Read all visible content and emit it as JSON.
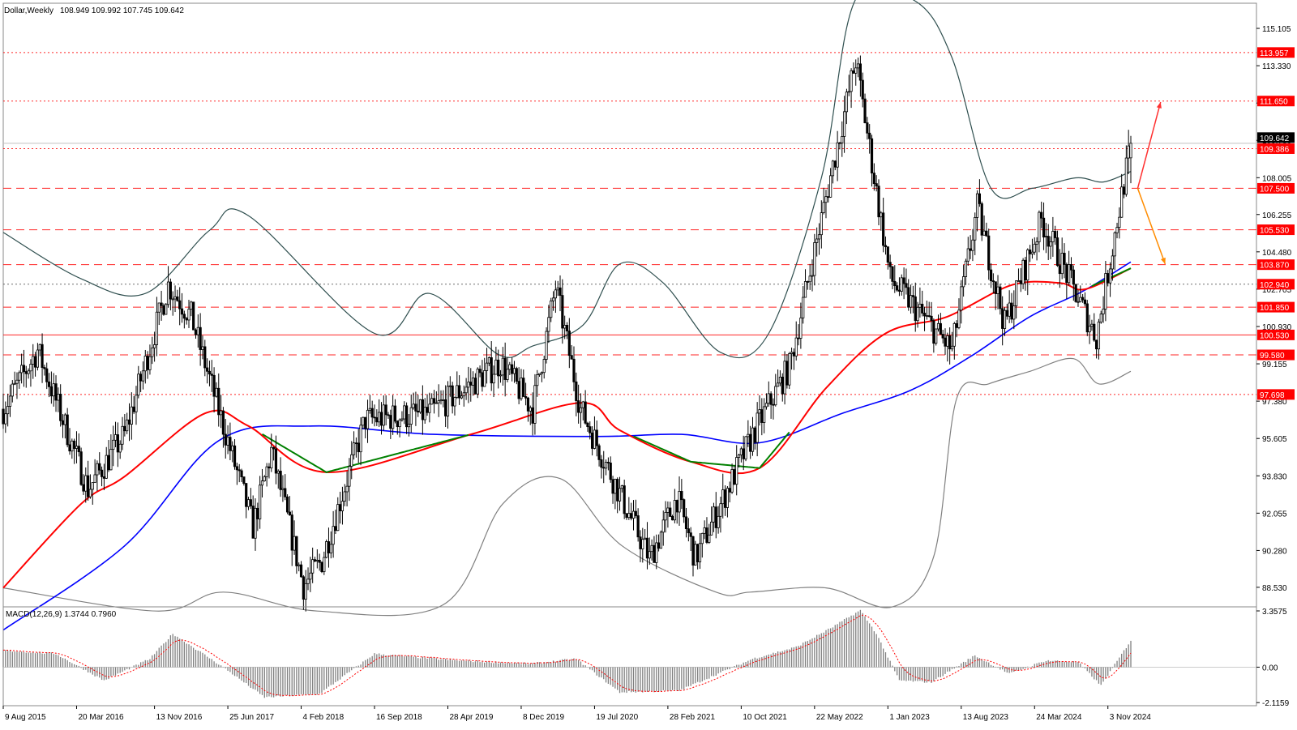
{
  "chart_title": {
    "symbol": "Dollar,Weekly",
    "ohlc": "108.949 109.992 107.745 109.642"
  },
  "macd_label": "MACD(12,26,9) 1.3744 0.7960",
  "colors": {
    "background": "#ffffff",
    "candle": "#000000",
    "ma_red": "#ff0000",
    "ma_blue": "#0000ff",
    "ma_green": "#008000",
    "bollinger_upper": "#2f4f4f",
    "bollinger_lower": "#808080",
    "level_line": "#ff0000",
    "badge_fill": "#ff0000",
    "arrow_up": "#ff3030",
    "arrow_down": "#ff8c00",
    "macd_bar": "#808080",
    "macd_signal": "#ff0000"
  },
  "price_axis": {
    "min": 87.6,
    "max": 116.3,
    "ticks": [
      "115.105",
      "113.330",
      "111.555",
      "109.780",
      "108.005",
      "106.255",
      "104.480",
      "102.705",
      "100.930",
      "99.155",
      "97.380",
      "95.605",
      "93.830",
      "92.055",
      "90.280",
      "88.530"
    ]
  },
  "macd_axis": {
    "min": -2.3,
    "max": 3.6,
    "ticks": [
      "3.3575",
      "0.00",
      "-2.1159"
    ]
  },
  "time_axis": {
    "start": "2015-08-09",
    "end": "2025-01-12",
    "labels": [
      "9 Aug 2015",
      "20 Mar 2016",
      "13 Nov 2016",
      "25 Jun 2017",
      "4 Feb 2018",
      "16 Sep 2018",
      "28 Apr 2019",
      "8 Dec 2019",
      "19 Jul 2020",
      "28 Feb 2021",
      "10 Oct 2021",
      "22 May 2022",
      "1 Jan 2023",
      "13 Aug 2023",
      "24 Mar 2024",
      "3 Nov 2024"
    ]
  },
  "levels": [
    {
      "value": "113.957",
      "price": 113.957,
      "style": "dotted"
    },
    {
      "value": "111.650",
      "price": 111.65,
      "style": "dotted"
    },
    {
      "value": "109.386",
      "price": 109.386,
      "style": "dotted"
    },
    {
      "value": "107.500",
      "price": 107.5,
      "style": "dashed"
    },
    {
      "value": "105.530",
      "price": 105.53,
      "style": "dashed"
    },
    {
      "value": "103.870",
      "price": 103.87,
      "style": "dashed"
    },
    {
      "value": "102.940",
      "price": 102.94,
      "style": "dotted_dark"
    },
    {
      "value": "101.850",
      "price": 101.85,
      "style": "dashed"
    },
    {
      "value": "100.530",
      "price": 100.53,
      "style": "solid"
    },
    {
      "value": "99.580",
      "price": 99.58,
      "style": "dashed"
    },
    {
      "value": "97.698",
      "price": 97.698,
      "style": "dotted"
    }
  ],
  "current_price": {
    "value": "109.642",
    "price": 109.642
  },
  "chart_data": {
    "type": "candlestick",
    "title": "Dollar,Weekly",
    "timeframe": "Weekly",
    "last_bar": {
      "open": 108.949,
      "high": 109.992,
      "low": 107.745,
      "close": 109.642
    },
    "price_path_anchors": [
      {
        "date": "2015-08-09",
        "price": 97.0
      },
      {
        "date": "2015-11-22",
        "price": 99.8
      },
      {
        "date": "2016-04-24",
        "price": 93.2
      },
      {
        "date": "2016-08-14",
        "price": 95.8
      },
      {
        "date": "2016-12-25",
        "price": 102.9
      },
      {
        "date": "2017-03-05",
        "price": 101.4
      },
      {
        "date": "2017-09-10",
        "price": 91.4
      },
      {
        "date": "2017-11-05",
        "price": 95.0
      },
      {
        "date": "2018-02-11",
        "price": 88.6
      },
      {
        "date": "2018-04-08",
        "price": 89.8
      },
      {
        "date": "2018-08-19",
        "price": 96.5
      },
      {
        "date": "2019-03-03",
        "price": 96.8
      },
      {
        "date": "2019-10-06",
        "price": 99.2
      },
      {
        "date": "2020-01-12",
        "price": 97.0
      },
      {
        "date": "2020-03-22",
        "price": 102.8
      },
      {
        "date": "2020-06-07",
        "price": 97.0
      },
      {
        "date": "2021-01-03",
        "price": 89.9
      },
      {
        "date": "2021-03-28",
        "price": 92.8
      },
      {
        "date": "2021-05-23",
        "price": 89.9
      },
      {
        "date": "2021-11-21",
        "price": 96.0
      },
      {
        "date": "2022-03-06",
        "price": 99.0
      },
      {
        "date": "2022-09-25",
        "price": 113.6
      },
      {
        "date": "2023-01-08",
        "price": 103.2
      },
      {
        "date": "2023-07-16",
        "price": 99.8
      },
      {
        "date": "2023-10-01",
        "price": 106.6
      },
      {
        "date": "2023-12-24",
        "price": 101.0
      },
      {
        "date": "2024-04-14",
        "price": 106.0
      },
      {
        "date": "2024-09-29",
        "price": 100.4
      },
      {
        "date": "2025-01-12",
        "price": 109.6
      }
    ],
    "moving_averages": [
      {
        "name": "MA fast",
        "color": "red",
        "points": [
          {
            "date": "2015-08-09",
            "price": 88.5
          },
          {
            "date": "2016-04-03",
            "price": 92.5
          },
          {
            "date": "2016-08-14",
            "price": 93.8
          },
          {
            "date": "2017-04-16",
            "price": 96.8
          },
          {
            "date": "2017-08-27",
            "price": 96.2
          },
          {
            "date": "2018-04-22",
            "price": 94.0
          },
          {
            "date": "2019-07-07",
            "price": 95.8
          },
          {
            "date": "2020-06-07",
            "price": 97.3
          },
          {
            "date": "2020-10-04",
            "price": 96.0
          },
          {
            "date": "2021-05-09",
            "price": 94.5
          },
          {
            "date": "2021-12-05",
            "price": 94.2
          },
          {
            "date": "2022-06-26",
            "price": 98.0
          },
          {
            "date": "2022-12-25",
            "price": 100.6
          },
          {
            "date": "2023-07-02",
            "price": 101.4
          },
          {
            "date": "2024-01-14",
            "price": 102.9
          },
          {
            "date": "2024-06-09",
            "price": 103.0
          },
          {
            "date": "2024-08-25",
            "price": 102.7
          },
          {
            "date": "2025-01-12",
            "price": 103.7
          }
        ]
      },
      {
        "name": "MA slow",
        "color": "blue",
        "points": [
          {
            "date": "2015-08-09",
            "price": 86.5
          },
          {
            "date": "2016-08-14",
            "price": 90.5
          },
          {
            "date": "2017-05-28",
            "price": 95.5
          },
          {
            "date": "2018-03-11",
            "price": 96.2
          },
          {
            "date": "2019-03-17",
            "price": 95.8
          },
          {
            "date": "2020-08-02",
            "price": 95.7
          },
          {
            "date": "2021-04-11",
            "price": 95.8
          },
          {
            "date": "2021-12-05",
            "price": 95.4
          },
          {
            "date": "2022-08-14",
            "price": 96.8
          },
          {
            "date": "2023-03-12",
            "price": 97.9
          },
          {
            "date": "2023-09-10",
            "price": 99.5
          },
          {
            "date": "2024-03-10",
            "price": 101.4
          },
          {
            "date": "2024-08-18",
            "price": 102.6
          },
          {
            "date": "2025-01-12",
            "price": 104.0
          }
        ]
      }
    ],
    "bollinger_bands": {
      "upper": [
        {
          "date": "2015-08-09",
          "price": 105.4
        },
        {
          "date": "2016-04-03",
          "price": 103.2
        },
        {
          "date": "2016-10-16",
          "price": 102.5
        },
        {
          "date": "2017-04-30",
          "price": 105.5
        },
        {
          "date": "2017-08-27",
          "price": 106.2
        },
        {
          "date": "2018-09-16",
          "price": 100.6
        },
        {
          "date": "2019-03-03",
          "price": 102.5
        },
        {
          "date": "2019-09-29",
          "price": 99.6
        },
        {
          "date": "2020-01-12",
          "price": 100.0
        },
        {
          "date": "2020-06-14",
          "price": 101.0
        },
        {
          "date": "2020-10-04",
          "price": 103.9
        },
        {
          "date": "2021-02-14",
          "price": 103.0
        },
        {
          "date": "2021-08-08",
          "price": 99.7
        },
        {
          "date": "2022-01-02",
          "price": 100.6
        },
        {
          "date": "2022-06-12",
          "price": 108.0
        },
        {
          "date": "2022-09-25",
          "price": 116.5
        },
        {
          "date": "2023-03-26",
          "price": 116.4
        },
        {
          "date": "2023-07-16",
          "price": 113.7
        },
        {
          "date": "2023-11-12",
          "price": 107.5
        },
        {
          "date": "2024-03-17",
          "price": 107.5
        },
        {
          "date": "2024-07-28",
          "price": 108.0
        },
        {
          "date": "2024-10-20",
          "price": 107.8
        },
        {
          "date": "2025-01-12",
          "price": 108.3
        }
      ],
      "lower": [
        {
          "date": "2015-08-09",
          "price": 88.5
        },
        {
          "date": "2016-11-20",
          "price": 87.4
        },
        {
          "date": "2017-06-11",
          "price": 88.3
        },
        {
          "date": "2018-03-25",
          "price": 87.4
        },
        {
          "date": "2019-04-14",
          "price": 87.7
        },
        {
          "date": "2019-10-13",
          "price": 92.5
        },
        {
          "date": "2020-04-05",
          "price": 93.7
        },
        {
          "date": "2020-10-11",
          "price": 90.5
        },
        {
          "date": "2021-07-25",
          "price": 88.3
        },
        {
          "date": "2021-11-07",
          "price": 88.3
        },
        {
          "date": "2022-06-26",
          "price": 88.5
        },
        {
          "date": "2023-01-15",
          "price": 87.6
        },
        {
          "date": "2023-05-21",
          "price": 90.0
        },
        {
          "date": "2023-07-30",
          "price": 97.5
        },
        {
          "date": "2023-11-05",
          "price": 98.2
        },
        {
          "date": "2024-03-10",
          "price": 98.8
        },
        {
          "date": "2024-07-21",
          "price": 99.4
        },
        {
          "date": "2024-10-06",
          "price": 98.2
        },
        {
          "date": "2025-01-12",
          "price": 98.8
        }
      ]
    },
    "projection_arrows": [
      {
        "direction": "up",
        "from": {
          "date": "2025-02-02",
          "price": 107.5
        },
        "to": {
          "date": "2025-04-13",
          "price": 111.6
        }
      },
      {
        "direction": "down",
        "from": {
          "date": "2025-02-02",
          "price": 107.5
        },
        "to": {
          "date": "2025-04-27",
          "price": 103.9
        }
      }
    ],
    "macd": {
      "params": "12,26,9",
      "value": 1.3744,
      "signal": 0.796,
      "anchors": [
        {
          "date": "2015-08-09",
          "value": 1.0
        },
        {
          "date": "2016-01-17",
          "value": 0.8
        },
        {
          "date": "2016-06-12",
          "value": -0.8
        },
        {
          "date": "2016-10-30",
          "value": 0.5
        },
        {
          "date": "2017-01-08",
          "value": 2.0
        },
        {
          "date": "2017-06-11",
          "value": 0.0
        },
        {
          "date": "2017-10-15",
          "value": -1.8
        },
        {
          "date": "2018-04-01",
          "value": -1.6
        },
        {
          "date": "2018-09-16",
          "value": 0.8
        },
        {
          "date": "2019-05-26",
          "value": 0.4
        },
        {
          "date": "2020-01-05",
          "value": 0.2
        },
        {
          "date": "2020-05-24",
          "value": 0.5
        },
        {
          "date": "2020-10-04",
          "value": -1.5
        },
        {
          "date": "2021-04-04",
          "value": -1.4
        },
        {
          "date": "2021-11-14",
          "value": 0.5
        },
        {
          "date": "2022-03-27",
          "value": 1.2
        },
        {
          "date": "2022-07-17",
          "value": 2.4
        },
        {
          "date": "2022-10-09",
          "value": 3.4
        },
        {
          "date": "2022-11-27",
          "value": 2.0
        },
        {
          "date": "2023-02-05",
          "value": -0.8
        },
        {
          "date": "2023-05-14",
          "value": -0.9
        },
        {
          "date": "2023-09-24",
          "value": 0.7
        },
        {
          "date": "2024-01-07",
          "value": -0.4
        },
        {
          "date": "2024-04-28",
          "value": 0.4
        },
        {
          "date": "2024-08-04",
          "value": 0.3
        },
        {
          "date": "2024-10-13",
          "value": -1.1
        },
        {
          "date": "2025-01-12",
          "value": 1.6
        }
      ]
    }
  }
}
